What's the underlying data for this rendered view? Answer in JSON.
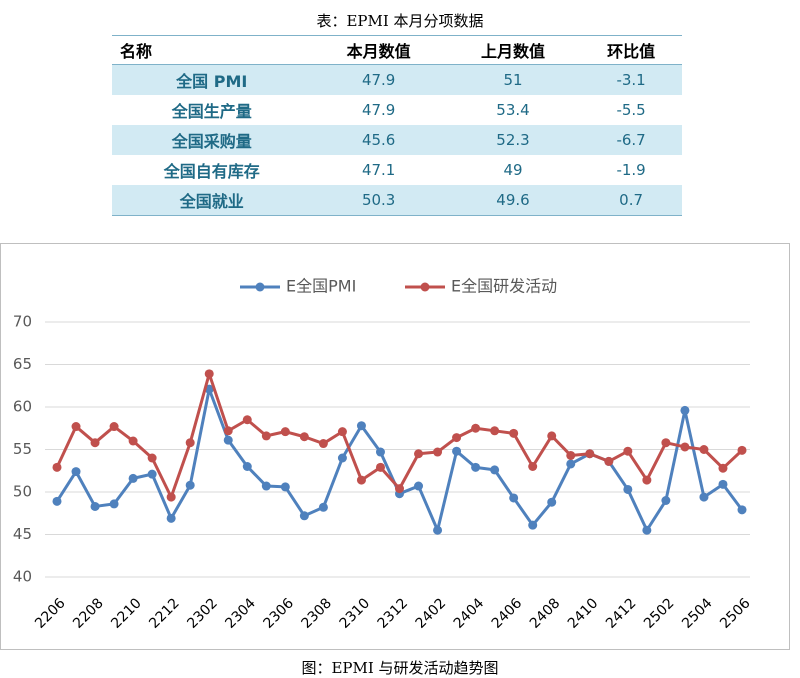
{
  "table": {
    "caption": "表：EPMI 本月分项数据",
    "headers": [
      "名称",
      "本月数值",
      "上月数值",
      "环比值"
    ],
    "rows": [
      [
        "全国 PMI",
        "47.9",
        "51",
        "-3.1"
      ],
      [
        "全国生产量",
        "47.9",
        "53.4",
        "-5.5"
      ],
      [
        "全国采购量",
        "45.6",
        "52.3",
        "-6.7"
      ],
      [
        "全国自有库存",
        "47.1",
        "49",
        "-1.9"
      ],
      [
        "全国就业",
        "50.3",
        "49.6",
        "0.7"
      ]
    ]
  },
  "chart_data": {
    "type": "line",
    "caption": "图：EPMI 与研发活动趋势图",
    "categories": [
      "2206",
      null,
      "2208",
      null,
      "2210",
      null,
      "2212",
      null,
      "2302",
      null,
      "2304",
      null,
      "2306",
      null,
      "2308",
      null,
      "2310",
      null,
      "2312",
      null,
      "2402",
      null,
      "2404",
      null,
      "2406",
      null,
      "2408",
      null,
      "2410",
      null,
      "2412",
      null,
      "2502",
      null,
      "2504",
      null,
      "2506"
    ],
    "series": [
      {
        "name": "E全国PMI",
        "color": "#4f81bd",
        "values": [
          48.9,
          52.4,
          48.3,
          48.6,
          51.6,
          52.1,
          46.9,
          50.8,
          62.1,
          56.1,
          53.0,
          50.7,
          50.6,
          47.2,
          48.2,
          54.0,
          57.8,
          54.7,
          49.8,
          50.7,
          45.5,
          54.8,
          52.9,
          52.6,
          49.3,
          46.1,
          48.8,
          53.3,
          54.5,
          53.6,
          50.3,
          45.5,
          49.0,
          59.6,
          49.4,
          50.9,
          47.9
        ]
      },
      {
        "name": "E全国研发活动",
        "color": "#c0504d",
        "values": [
          52.9,
          57.7,
          55.8,
          57.7,
          56.0,
          54.0,
          49.4,
          55.8,
          63.9,
          57.2,
          58.5,
          56.6,
          57.1,
          56.5,
          55.7,
          57.1,
          51.4,
          52.9,
          50.4,
          54.5,
          54.7,
          56.4,
          57.5,
          57.2,
          56.9,
          53.0,
          56.6,
          54.3,
          54.5,
          53.6,
          54.8,
          51.4,
          55.8,
          55.3,
          55.0,
          52.8,
          54.9
        ]
      }
    ],
    "ylim": [
      40,
      70
    ],
    "yticks": [
      40,
      45,
      50,
      55,
      60,
      65,
      70
    ],
    "grid": true,
    "legend": "top"
  }
}
